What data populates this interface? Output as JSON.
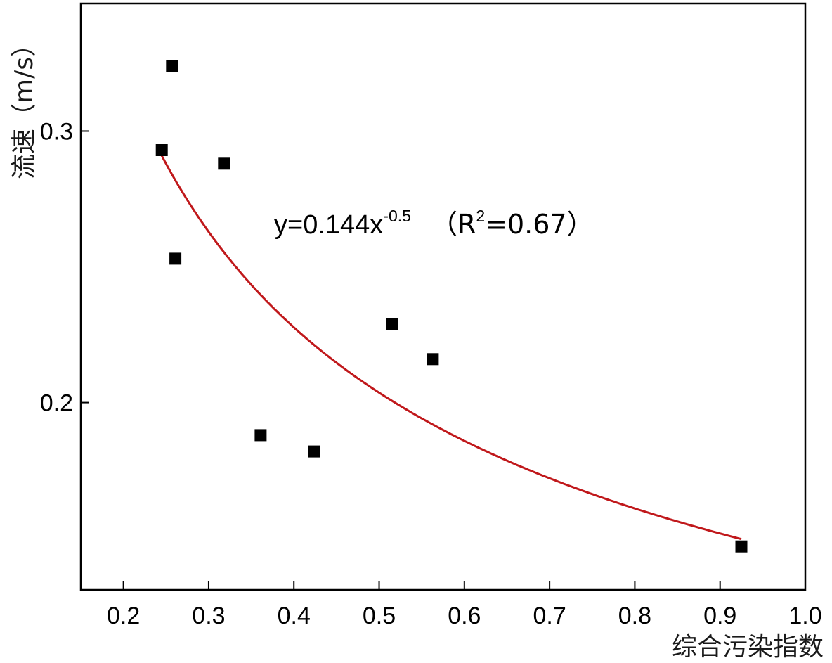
{
  "chart_data": {
    "type": "scatter",
    "title": "",
    "xlabel": "综合污染指数",
    "ylabel": "流速（m/s）",
    "xlim": [
      0.15,
      1.0
    ],
    "ylim": [
      0.131,
      0.347
    ],
    "x_ticks": [
      0.2,
      0.3,
      0.4,
      0.5,
      0.6,
      0.7,
      0.8,
      0.9,
      1.0
    ],
    "x_tick_labels": [
      "0.2",
      "0.3",
      "0.4",
      "0.5",
      "0.6",
      "0.7",
      "0.8",
      "0.9",
      "1.0"
    ],
    "y_ticks": [
      0.2,
      0.3
    ],
    "y_tick_labels": [
      "0.2",
      "0.3"
    ],
    "grid": false,
    "points": [
      {
        "x": 0.245,
        "y": 0.293
      },
      {
        "x": 0.257,
        "y": 0.324
      },
      {
        "x": 0.261,
        "y": 0.253
      },
      {
        "x": 0.318,
        "y": 0.288
      },
      {
        "x": 0.361,
        "y": 0.188
      },
      {
        "x": 0.424,
        "y": 0.182
      },
      {
        "x": 0.515,
        "y": 0.229
      },
      {
        "x": 0.563,
        "y": 0.216
      },
      {
        "x": 0.925,
        "y": 0.147
      }
    ],
    "fit": {
      "equation": "y=0.144x^-0.5",
      "coefficient": 0.144,
      "exponent": -0.5,
      "r_squared": 0.67,
      "x_range": [
        0.245,
        0.925
      ]
    },
    "annotation": {
      "prefix": "y=0.144x",
      "superscript": "-0.5",
      "r2_open": "（R",
      "r2_sup": "2",
      "r2_rest": "=0.67）"
    },
    "marker_color": "#000000",
    "fit_color": "#c0181b"
  }
}
